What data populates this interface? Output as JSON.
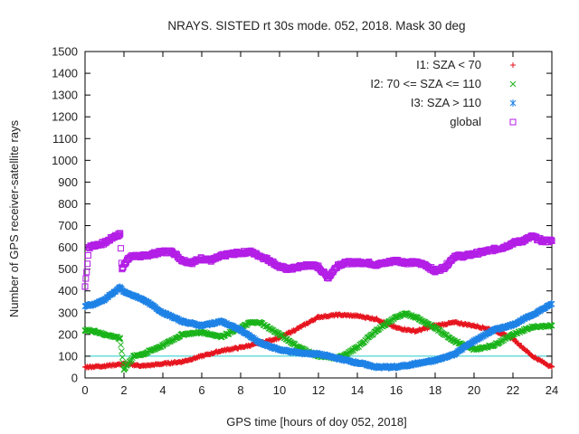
{
  "chart_data": {
    "type": "scatter",
    "title": "NRAYS. SISTED rt 30s mode. 052, 2018. Mask 30 deg",
    "xlabel": "GPS time [hours of doy 052, 2018]",
    "ylabel": "Number of GPS receiver-satellite rays",
    "xlim": [
      0,
      24
    ],
    "ylim": [
      0,
      1500
    ],
    "x_ticks": [
      "0",
      "2",
      "4",
      "6",
      "8",
      "10",
      "12",
      "14",
      "16",
      "18",
      "20",
      "22",
      "24"
    ],
    "y_ticks": [
      "0",
      "100",
      "200",
      "300",
      "400",
      "500",
      "600",
      "700",
      "800",
      "900",
      "1000",
      "1100",
      "1200",
      "1300",
      "1400",
      "1500"
    ],
    "grid": false,
    "legend_position": "top-right",
    "reference_line": {
      "y": 100,
      "color": "#22cccc"
    },
    "series": [
      {
        "name": "I1: SZA < 70",
        "marker": "+",
        "color": "#e6141e",
        "x": [
          0,
          1,
          2,
          3,
          4,
          5,
          6,
          7,
          8,
          9,
          10,
          11,
          12,
          13,
          14,
          15,
          16,
          17,
          18,
          19,
          20,
          21,
          22,
          23,
          24
        ],
        "y": [
          50,
          55,
          65,
          55,
          65,
          75,
          100,
          125,
          140,
          160,
          185,
          230,
          280,
          290,
          285,
          270,
          230,
          215,
          240,
          255,
          240,
          220,
          180,
          100,
          50
        ]
      },
      {
        "name": "I2: 70 <= SZA <= 110",
        "marker": "x",
        "color": "#19b319",
        "x": [
          0,
          0.5,
          1,
          1.5,
          1.8,
          2,
          2.5,
          3,
          4,
          5,
          6,
          7,
          8,
          8.5,
          9,
          10,
          11,
          12,
          13,
          14,
          15,
          16,
          16.5,
          17,
          18,
          19,
          20,
          21,
          22,
          23,
          24
        ],
        "y": [
          220,
          215,
          200,
          190,
          180,
          40,
          100,
          110,
          150,
          200,
          210,
          190,
          230,
          255,
          255,
          200,
          140,
          100,
          90,
          140,
          220,
          280,
          295,
          280,
          230,
          170,
          130,
          150,
          200,
          235,
          240
        ]
      },
      {
        "name": "I3: SZA > 110",
        "marker": "*",
        "color": "#1e82e6",
        "x": [
          0,
          0.5,
          1,
          1.5,
          1.8,
          2,
          3,
          4,
          5,
          6,
          7,
          8,
          9,
          10,
          11,
          12,
          13,
          14,
          15,
          16,
          17,
          18,
          19,
          20,
          21,
          22,
          23,
          24
        ],
        "y": [
          330,
          340,
          360,
          395,
          415,
          395,
          360,
          300,
          260,
          240,
          260,
          220,
          160,
          130,
          115,
          110,
          90,
          70,
          50,
          50,
          65,
          80,
          110,
          170,
          220,
          245,
          290,
          340
        ]
      },
      {
        "name": "global",
        "marker": "square",
        "color": "#b31ee6",
        "x": [
          0,
          0.2,
          0.5,
          1,
          1.5,
          1.8,
          1.9,
          2.2,
          2.5,
          3,
          3.5,
          4,
          4.5,
          5,
          5.5,
          6,
          6.5,
          7,
          7.5,
          8,
          8.5,
          9,
          9.5,
          10,
          10.5,
          11,
          11.5,
          12,
          12.5,
          13,
          13.5,
          14,
          14.5,
          15,
          15.5,
          16,
          16.5,
          17,
          17.5,
          18,
          18.5,
          19,
          19.5,
          20,
          20.5,
          21,
          21.5,
          22,
          22.5,
          23,
          23.5,
          24
        ],
        "y": [
          420,
          600,
          610,
          620,
          650,
          660,
          500,
          550,
          560,
          560,
          570,
          580,
          580,
          540,
          530,
          550,
          540,
          560,
          570,
          575,
          580,
          560,
          540,
          510,
          500,
          510,
          520,
          510,
          460,
          520,
          530,
          530,
          530,
          520,
          530,
          540,
          530,
          530,
          520,
          490,
          510,
          560,
          560,
          570,
          580,
          590,
          600,
          620,
          630,
          650,
          630,
          630
        ]
      }
    ]
  }
}
